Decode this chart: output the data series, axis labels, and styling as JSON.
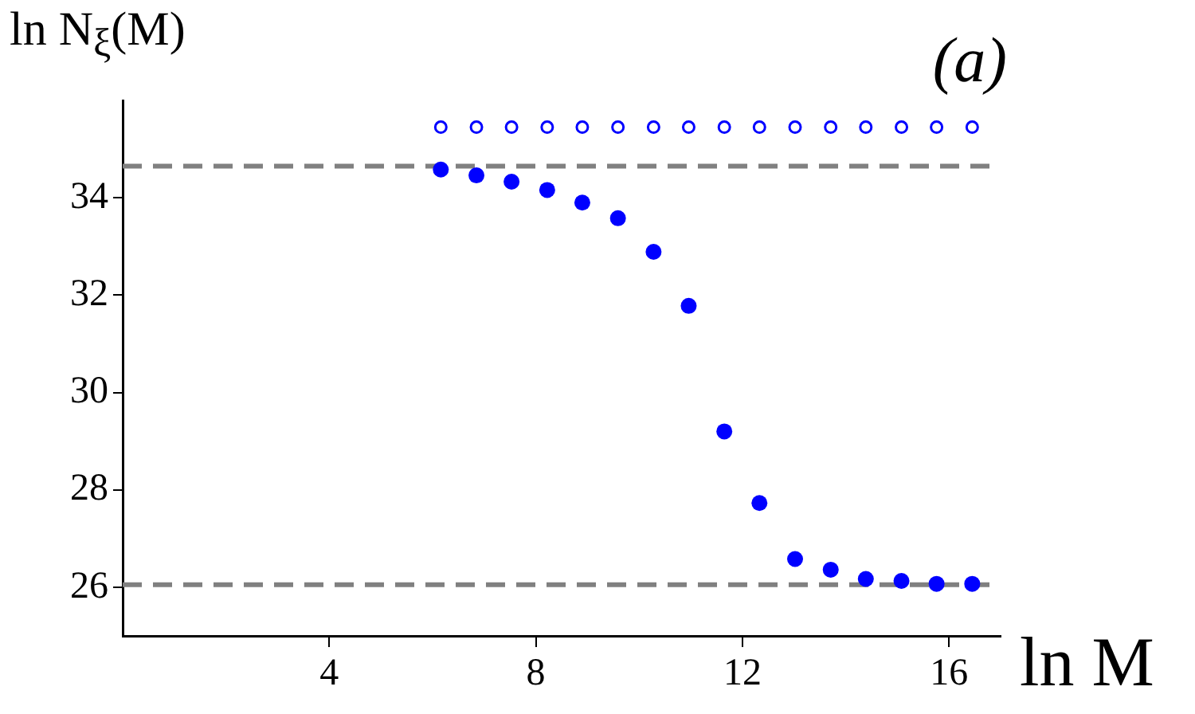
{
  "chart_data": {
    "type": "scatter",
    "title": "(a)",
    "xlabel": "ln M",
    "ylabel": "ln N$_{ξ}$(M)",
    "x": [
      6.16,
      6.85,
      7.53,
      8.22,
      8.9,
      9.59,
      10.28,
      10.96,
      11.65,
      12.33,
      13.02,
      13.71,
      14.39,
      15.08,
      15.76,
      16.45
    ],
    "series": [
      {
        "color": "#0000ff",
        "values": [
          34.58,
          34.46,
          34.33,
          34.16,
          33.9,
          33.58,
          32.89,
          31.78,
          29.2,
          27.73,
          26.58,
          26.36,
          26.17,
          26.13,
          26.07,
          26.07
        ]
      },
      {
        "color": "#0000ff",
        "values": [
          35.45,
          35.45,
          35.45,
          35.45,
          35.45,
          35.45,
          35.45,
          35.45,
          35.45,
          35.45,
          35.45,
          35.45,
          35.45,
          35.45,
          35.45,
          35.45
        ]
      }
    ],
    "marker": "circle",
    "legend": false,
    "xlim": [
      0,
      17
    ],
    "xticks": [
      4,
      8,
      12,
      16
    ],
    "ylim": [
      25,
      36
    ],
    "yticks": [
      26,
      28,
      30,
      32,
      34
    ],
    "ref_lines": [
      {
        "axis": "y",
        "value": 34.65,
        "color": "#808080",
        "line_style": "dashed"
      },
      {
        "axis": "y",
        "value": 26.05,
        "color": "#808080",
        "line_style": "dashed"
      }
    ]
  }
}
